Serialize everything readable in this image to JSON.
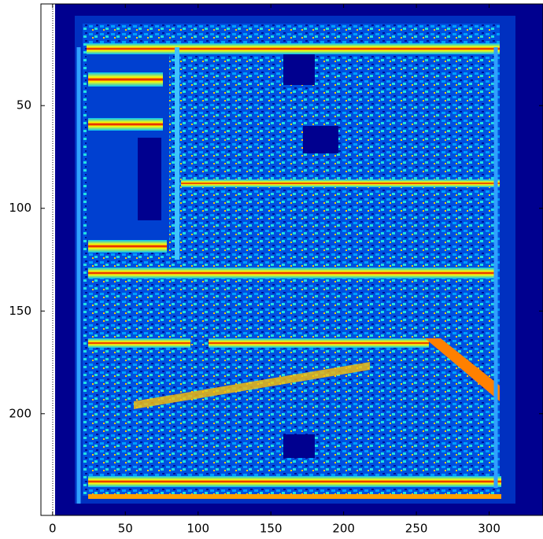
{
  "chart_data": {
    "type": "heatmap",
    "xlim": [
      -8,
      337
    ],
    "ylim": [
      0.5,
      249.5
    ],
    "y_reversed": true,
    "xticks": [
      0,
      50,
      100,
      150,
      200,
      250,
      300
    ],
    "yticks": [
      50,
      100,
      150,
      200
    ],
    "colormap": "jet"
  }
}
